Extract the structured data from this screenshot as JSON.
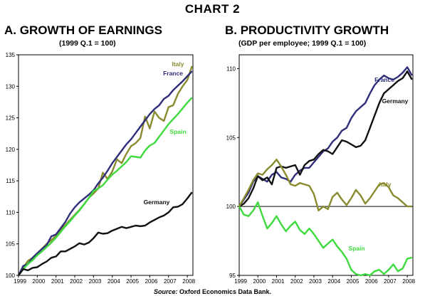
{
  "heading": "CHART 2",
  "source_label": "Source:",
  "source_text": "Oxford Economics Data Bank.",
  "chart_data": [
    {
      "type": "line",
      "title": "A. GROWTH OF EARNINGS",
      "subtitle": "(1999 Q.1 = 100)",
      "xlabel": "",
      "ylabel": "",
      "xlim": [
        1999,
        2008.3
      ],
      "ylim": [
        100,
        135
      ],
      "xticks": [
        "1999",
        "2000",
        "2001",
        "2002",
        "2003",
        "2004",
        "2005",
        "2006",
        "2007",
        "2008"
      ],
      "yticks": [
        "100",
        "105",
        "110",
        "115",
        "120",
        "125",
        "130",
        "135"
      ],
      "grid": false,
      "series": [
        {
          "name": "Italy",
          "color": "#8a8a2e",
          "x": [
            1999,
            1999.25,
            1999.5,
            1999.75,
            2000,
            2000.25,
            2000.5,
            2000.75,
            2001,
            2001.25,
            2001.5,
            2001.75,
            2002,
            2002.25,
            2002.5,
            2002.75,
            2003,
            2003.25,
            2003.5,
            2003.75,
            2004,
            2004.25,
            2004.5,
            2004.75,
            2005,
            2005.25,
            2005.5,
            2005.75,
            2006,
            2006.25,
            2006.5,
            2006.75,
            2007,
            2007.25,
            2007.5,
            2007.75,
            2008,
            2008.25
          ],
          "y": [
            100,
            101.2,
            102.3,
            102.8,
            103.5,
            104.2,
            105.0,
            105.6,
            106.3,
            107.2,
            108.0,
            108.8,
            109.6,
            110.4,
            111.3,
            112.3,
            113.0,
            113.8,
            116.3,
            115.3,
            116.5,
            118.4,
            117.8,
            119.3,
            120.5,
            121.0,
            121.8,
            125.2,
            123.3,
            126.0,
            125.0,
            124.5,
            126.7,
            127.0,
            128.8,
            130.0,
            131.0,
            133.2
          ]
        },
        {
          "name": "France",
          "color": "#2e2e7a",
          "x": [
            1999,
            1999.25,
            1999.5,
            1999.75,
            2000,
            2000.25,
            2000.5,
            2000.75,
            2001,
            2001.25,
            2001.5,
            2001.75,
            2002,
            2002.25,
            2002.5,
            2002.75,
            2003,
            2003.25,
            2003.5,
            2003.75,
            2004,
            2004.25,
            2004.5,
            2004.75,
            2005,
            2005.25,
            2005.5,
            2005.75,
            2006,
            2006.25,
            2006.5,
            2006.75,
            2007,
            2007.25,
            2007.5,
            2007.75,
            2008,
            2008.25
          ],
          "y": [
            100,
            101.5,
            101.8,
            102.8,
            103.5,
            104.2,
            104.8,
            106.2,
            106.5,
            107.5,
            108.5,
            109.8,
            110.8,
            111.6,
            112.2,
            112.8,
            113.5,
            114.6,
            115.5,
            116.6,
            117.8,
            118.8,
            119.8,
            120.8,
            121.6,
            122.6,
            123.6,
            124.6,
            125.6,
            126.4,
            127.0,
            128.0,
            128.5,
            129.4,
            130.1,
            130.8,
            131.6,
            132.4
          ]
        },
        {
          "name": "Spain",
          "color": "#3ddb3d",
          "x": [
            1999,
            1999.25,
            1999.5,
            1999.75,
            2000,
            2000.25,
            2000.5,
            2000.75,
            2001,
            2001.25,
            2001.5,
            2001.75,
            2002,
            2002.25,
            2002.5,
            2002.75,
            2003,
            2003.25,
            2003.5,
            2003.75,
            2004,
            2004.25,
            2004.5,
            2004.75,
            2005,
            2005.25,
            2005.5,
            2005.75,
            2006,
            2006.25,
            2006.5,
            2006.75,
            2007,
            2007.25,
            2007.5,
            2007.75,
            2008,
            2008.25
          ],
          "y": [
            100,
            101.0,
            101.8,
            102.4,
            103.2,
            103.8,
            104.5,
            105.2,
            106.0,
            106.9,
            107.8,
            108.6,
            109.5,
            110.3,
            111.3,
            112.3,
            113.4,
            113.8,
            114.3,
            115.2,
            116.0,
            116.6,
            117.3,
            118.0,
            118.9,
            118.8,
            118.7,
            119.8,
            120.6,
            121.0,
            122.0,
            123.0,
            124.0,
            124.8,
            125.6,
            126.5,
            127.4,
            128.2
          ]
        },
        {
          "name": "Germany",
          "color": "#111111",
          "x": [
            1999,
            1999.25,
            1999.5,
            1999.75,
            2000,
            2000.25,
            2000.5,
            2000.75,
            2001,
            2001.25,
            2001.5,
            2001.75,
            2002,
            2002.25,
            2002.5,
            2002.75,
            2003,
            2003.25,
            2003.5,
            2003.75,
            2004,
            2004.25,
            2004.5,
            2004.75,
            2005,
            2005.25,
            2005.5,
            2005.75,
            2006,
            2006.25,
            2006.5,
            2006.75,
            2007,
            2007.25,
            2007.5,
            2007.75,
            2008,
            2008.25
          ],
          "y": [
            100,
            101.0,
            100.8,
            101.2,
            101.3,
            101.8,
            102.2,
            102.8,
            103.0,
            103.8,
            103.8,
            104.2,
            104.6,
            105.1,
            104.9,
            105.2,
            105.9,
            106.8,
            106.6,
            106.7,
            107.1,
            107.4,
            107.7,
            107.5,
            107.7,
            107.9,
            107.8,
            107.9,
            108.4,
            108.8,
            109.2,
            109.5,
            110.0,
            110.8,
            110.9,
            111.3,
            112.2,
            113.2
          ]
        }
      ]
    },
    {
      "type": "line",
      "title": "B. PRODUCTIVITY GROWTH",
      "subtitle": "(GDP per employee; 1999 Q.1 = 100)",
      "xlabel": "",
      "ylabel": "",
      "xlim": [
        1999,
        2008.3
      ],
      "ylim": [
        95,
        111
      ],
      "xticks": [
        "1999",
        "2000",
        "2001",
        "2002",
        "2003",
        "2004",
        "2005",
        "2006",
        "2007",
        "2008"
      ],
      "yticks": [
        "95",
        "100",
        "105",
        "110"
      ],
      "grid": false,
      "reference_line": 100,
      "series": [
        {
          "name": "France",
          "color": "#2e2e7a",
          "x": [
            1999,
            1999.25,
            1999.5,
            1999.75,
            2000,
            2000.25,
            2000.5,
            2000.75,
            2001,
            2001.25,
            2001.5,
            2001.75,
            2002,
            2002.25,
            2002.5,
            2002.75,
            2003,
            2003.25,
            2003.5,
            2003.75,
            2004,
            2004.25,
            2004.5,
            2004.75,
            2005,
            2005.25,
            2005.5,
            2005.75,
            2006,
            2006.25,
            2006.5,
            2006.75,
            2007,
            2007.25,
            2007.5,
            2007.75,
            2008,
            2008.25
          ],
          "y": [
            100,
            100.5,
            101.0,
            101.8,
            102.2,
            102.0,
            101.8,
            102.3,
            102.5,
            102.1,
            102.0,
            101.8,
            102.3,
            102.6,
            102.8,
            102.8,
            103.2,
            103.6,
            104.0,
            104.2,
            104.7,
            105.0,
            105.5,
            105.7,
            106.4,
            106.9,
            107.2,
            107.5,
            108.2,
            108.8,
            109.2,
            109.5,
            109.3,
            109.2,
            109.4,
            109.7,
            110.1,
            109.5
          ]
        },
        {
          "name": "Germany",
          "color": "#111111",
          "x": [
            1999,
            1999.25,
            1999.5,
            1999.75,
            2000,
            2000.25,
            2000.5,
            2000.75,
            2001,
            2001.25,
            2001.5,
            2001.75,
            2002,
            2002.25,
            2002.5,
            2002.75,
            2003,
            2003.25,
            2003.5,
            2003.75,
            2004,
            2004.25,
            2004.5,
            2004.75,
            2005,
            2005.25,
            2005.5,
            2005.75,
            2006,
            2006.25,
            2006.5,
            2006.75,
            2007,
            2007.25,
            2007.5,
            2007.75,
            2008,
            2008.25
          ],
          "y": [
            100,
            100.2,
            100.6,
            101.3,
            102.2,
            101.9,
            102.1,
            101.6,
            102.8,
            102.9,
            102.8,
            102.9,
            103.0,
            102.3,
            103.0,
            103.3,
            103.4,
            103.8,
            104.1,
            104.0,
            103.8,
            104.3,
            104.8,
            104.7,
            104.5,
            104.3,
            104.4,
            104.8,
            105.7,
            106.6,
            107.5,
            108.2,
            108.5,
            108.8,
            109.1,
            109.3,
            109.8,
            109.2
          ]
        },
        {
          "name": "Italy",
          "color": "#8a8a2e",
          "x": [
            1999,
            1999.25,
            1999.5,
            1999.75,
            2000,
            2000.25,
            2000.5,
            2000.75,
            2001,
            2001.25,
            2001.5,
            2001.75,
            2002,
            2002.25,
            2002.5,
            2002.75,
            2003,
            2003.25,
            2003.5,
            2003.75,
            2004,
            2004.25,
            2004.5,
            2004.75,
            2005,
            2005.25,
            2005.5,
            2005.75,
            2006,
            2006.25,
            2006.5,
            2006.75,
            2007,
            2007.25,
            2007.5,
            2007.75,
            2008,
            2008.25
          ],
          "y": [
            100,
            100.6,
            101.2,
            101.9,
            102.4,
            102.3,
            102.7,
            103.0,
            103.4,
            102.9,
            102.3,
            101.6,
            101.5,
            101.7,
            101.6,
            101.5,
            100.9,
            99.7,
            100.0,
            99.8,
            100.7,
            101.0,
            100.5,
            100.1,
            100.6,
            101.2,
            100.8,
            100.2,
            100.6,
            101.1,
            101.6,
            101.7,
            101.4,
            100.8,
            100.6,
            100.3,
            100.0,
            100.0
          ]
        },
        {
          "name": "Spain",
          "color": "#3ddb3d",
          "x": [
            1999,
            1999.25,
            1999.5,
            1999.75,
            2000,
            2000.25,
            2000.5,
            2000.75,
            2001,
            2001.25,
            2001.5,
            2001.75,
            2002,
            2002.25,
            2002.5,
            2002.75,
            2003,
            2003.25,
            2003.5,
            2003.75,
            2004,
            2004.25,
            2004.5,
            2004.75,
            2005,
            2005.25,
            2005.5,
            2005.75,
            2006,
            2006.25,
            2006.5,
            2006.75,
            2007,
            2007.25,
            2007.5,
            2007.75,
            2008,
            2008.25
          ],
          "y": [
            100,
            99.4,
            99.3,
            99.7,
            100.3,
            99.3,
            98.4,
            98.8,
            99.3,
            98.7,
            98.2,
            98.6,
            98.9,
            98.3,
            98.0,
            98.4,
            98.0,
            97.5,
            97.0,
            97.3,
            97.6,
            97.1,
            96.7,
            96.2,
            95.4,
            95.1,
            95.0,
            95.1,
            95.0,
            95.3,
            95.4,
            95.1,
            95.4,
            95.8,
            95.3,
            95.5,
            96.2,
            96.3
          ]
        }
      ]
    }
  ]
}
